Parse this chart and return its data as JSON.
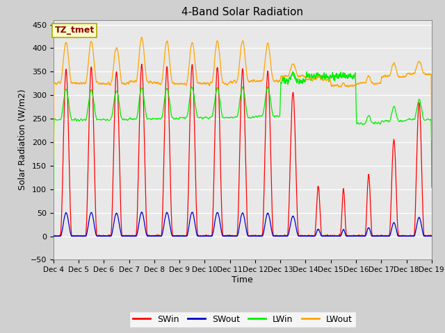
{
  "title": "4-Band Solar Radiation",
  "xlabel": "Time",
  "ylabel": "Solar Radiation (W/m2)",
  "annotation": "TZ_tmet",
  "ylim": [
    -50,
    460
  ],
  "xlim": [
    0,
    360
  ],
  "fig_bg": "#d0d0d0",
  "ax_bg": "#e8e8e8",
  "colors": {
    "SWin": "#ff0000",
    "SWout": "#0000cc",
    "LWin": "#00ee00",
    "LWout": "#ffa500"
  },
  "yticks": [
    -50,
    0,
    50,
    100,
    150,
    200,
    250,
    300,
    350,
    400,
    450
  ],
  "xtick_labels": [
    "Dec 4",
    "Dec 5",
    "Dec 6",
    "Dec 7",
    "Dec 8",
    "Dec 9",
    "Dec 10",
    "Dec 11",
    "Dec 12",
    "Dec 13",
    "Dec 14",
    "Dec 15",
    "Dec 16",
    "Dec 17",
    "Dec 18",
    "Dec 19"
  ],
  "xtick_positions": [
    0,
    24,
    48,
    72,
    96,
    120,
    144,
    168,
    192,
    216,
    240,
    264,
    288,
    312,
    336,
    360
  ]
}
